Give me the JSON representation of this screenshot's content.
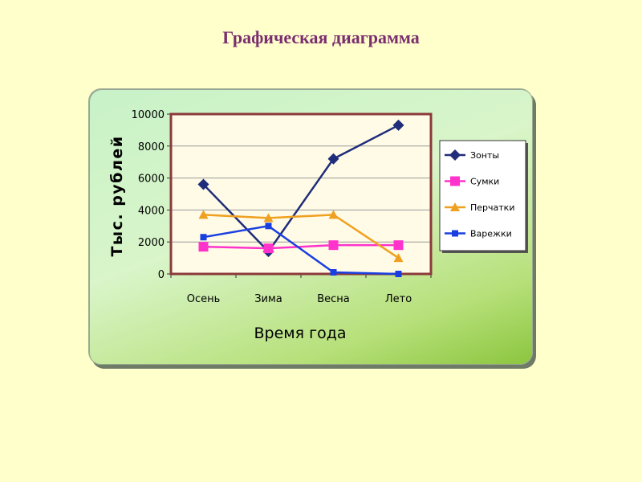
{
  "slide": {
    "title": "Графическая диаграмма"
  },
  "colors": {
    "background": "#FFFFCC",
    "title": "#7A2E6E",
    "plot_border": "#8B3A3A",
    "plot_fill": "#FFFBE6",
    "Зонты": "#1F2D7A",
    "Сумки": "#FF33CC",
    "Перчатки": "#F0A020",
    "Варежки": "#1A3FE0"
  },
  "chart_data": {
    "type": "line",
    "title": "",
    "xlabel": "Время года",
    "ylabel": "Тыс. рублей",
    "categories": [
      "Осень",
      "Зима",
      "Весна",
      "Лето"
    ],
    "ylim": [
      0,
      10000
    ],
    "yticks": [
      0,
      2000,
      4000,
      6000,
      8000,
      10000
    ],
    "grid": true,
    "legend_position": "right",
    "series": [
      {
        "name": "Зонты",
        "marker": "diamond",
        "values": [
          5600,
          1400,
          7200,
          9300
        ]
      },
      {
        "name": "Сумки",
        "marker": "square",
        "values": [
          1700,
          1600,
          1800,
          1800
        ]
      },
      {
        "name": "Перчатки",
        "marker": "triangle",
        "values": [
          3700,
          3500,
          3700,
          1000
        ]
      },
      {
        "name": "Варежки",
        "marker": "small-square",
        "values": [
          2300,
          3000,
          100,
          0
        ]
      }
    ]
  }
}
